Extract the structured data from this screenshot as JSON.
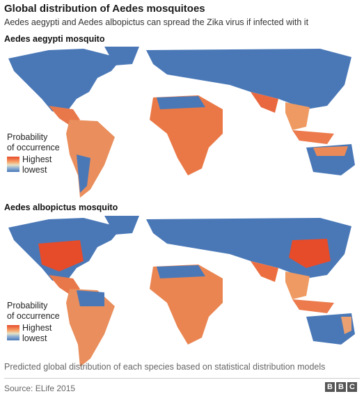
{
  "title": "Global distribution of Aedes mosquitoes",
  "subtitle": "Aedes aegypti and Aedes albopictus can spread the Zika virus if infected with it",
  "maps": [
    {
      "label": "Aedes aegypti mosquito",
      "legend_title_1": "Probability",
      "legend_title_2": "of occurrence",
      "legend_high": "Highest",
      "legend_low": "lowest"
    },
    {
      "label": "Aedes albopictus mosquito",
      "legend_title_1": "Probability",
      "legend_title_2": "of occurrence",
      "legend_high": "Highest",
      "legend_low": "lowest"
    }
  ],
  "caption": "Predicted global distribution of each species based on statistical distribution models",
  "source": "Source: ELife 2015",
  "brand": [
    "B",
    "B",
    "C"
  ],
  "colors": {
    "land_low": "#4a78b7",
    "land_mid": "#e8e4c8",
    "land_high": "#e64b2a",
    "ocean": "#ffffff"
  }
}
